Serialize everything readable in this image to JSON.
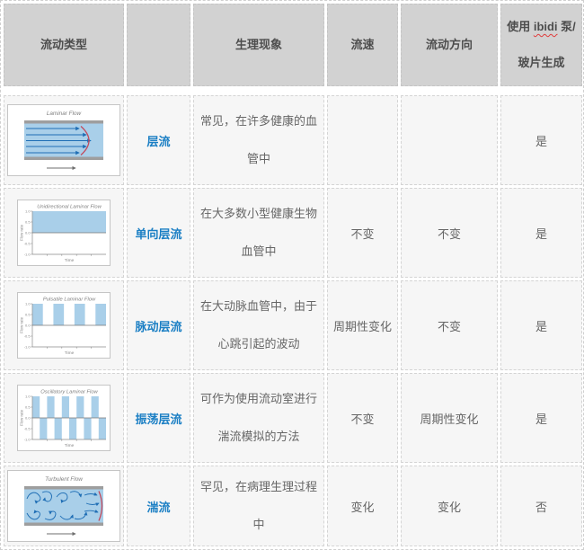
{
  "colors": {
    "accent_blue": "#1b7fc4",
    "diagram_blue": "#1f6eb5",
    "fill_blue": "#a9cfe9",
    "curve_red": "#c24a5c",
    "channel_gray": "#9e9e9e",
    "axis_gray": "#8a8a8a",
    "label_gray": "#808080",
    "arrow_gray": "#6e6e6e",
    "header_bg": "#d2d2d2"
  },
  "table": {
    "headers": {
      "flow_type": "流动类型",
      "name": "",
      "phenomenon": "生理现象",
      "velocity": "流速",
      "direction": "流动方向",
      "ibidi_prefix": "使用 ",
      "ibidi_word": "ibidi",
      "ibidi_suffix": " 泵/玻片生成"
    },
    "rows": [
      {
        "name": "层流",
        "phenomenon": "常见，在许多健康的血管中",
        "velocity": "",
        "direction": "",
        "ibidi": "是",
        "chart": {
          "type": "laminar",
          "title": "Laminar Flow"
        }
      },
      {
        "name": "单向层流",
        "phenomenon": "在大多数小型健康生物血管中",
        "velocity": "不变",
        "direction": "不变",
        "ibidi": "是",
        "chart": {
          "type": "step",
          "title": "Unidirectional Laminar Flow",
          "ylabel": "Flow rate",
          "xlabel": "Time",
          "yticks": [
            "1.0",
            "0.5",
            "0.0",
            "-0.5",
            "-1.0"
          ],
          "ylim": [
            -1,
            1
          ],
          "values": [
            1
          ]
        }
      },
      {
        "name": "脉动层流",
        "phenomenon": "在大动脉血管中，由于心跳引起的波动",
        "velocity": "周期性变化",
        "direction": "不变",
        "ibidi": "是",
        "chart": {
          "type": "step",
          "title": "Pulsatile Laminar Flow",
          "ylabel": "Flow rate",
          "xlabel": "Time",
          "yticks": [
            "1.0",
            "0.5",
            "0.0",
            "-0.5",
            "-1.0"
          ],
          "ylim": [
            -1,
            1
          ],
          "values": [
            1,
            0,
            1,
            0,
            1,
            0,
            1
          ]
        }
      },
      {
        "name": "振荡层流",
        "phenomenon": "可作为使用流动室进行湍流模拟的方法",
        "velocity": "不变",
        "direction": "周期性变化",
        "ibidi": "是",
        "chart": {
          "type": "step",
          "title": "Oscillatory Laminar Flow",
          "ylabel": "Flow rate",
          "xlabel": "Time",
          "yticks": [
            "1.0",
            "0.5",
            "0.0",
            "-0.5",
            "-1.0"
          ],
          "ylim": [
            -1,
            1
          ],
          "values": [
            1,
            -1,
            1,
            -1,
            1,
            -1,
            1,
            -1,
            1,
            -1
          ]
        }
      },
      {
        "name": "湍流",
        "phenomenon": "罕见，在病理生理过程中",
        "velocity": "变化",
        "direction": "变化",
        "ibidi": "否",
        "chart": {
          "type": "turbulent",
          "title": "Turbulent Flow"
        }
      }
    ]
  }
}
